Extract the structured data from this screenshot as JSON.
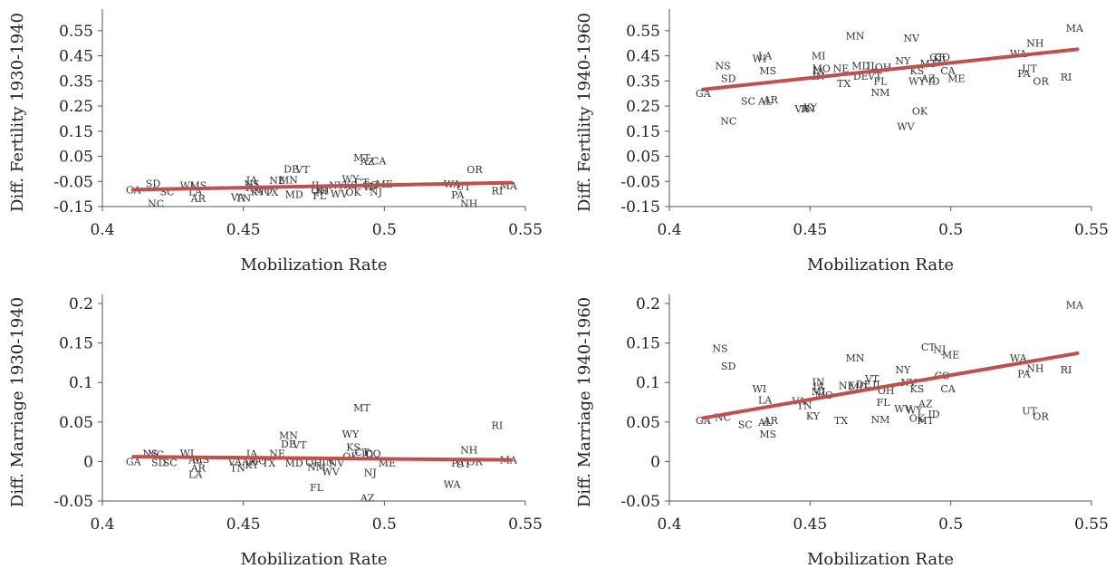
{
  "chart_data": [
    {
      "type": "scatter",
      "xlabel": "Mobilization Rate",
      "ylabel": "Diff. Fertility 1930-1940",
      "xlim": [
        0.4,
        0.55
      ],
      "ylim": [
        -0.15,
        0.6
      ],
      "xticks": [
        "0.4",
        "0.45",
        "0.5",
        "0.55"
      ],
      "yticks": [
        "-0.15",
        "-0.05",
        "0.05",
        "0.15",
        "0.25",
        "0.35",
        "0.45",
        "0.55"
      ],
      "ytick_values": [
        -0.15,
        -0.05,
        0.05,
        0.15,
        0.25,
        0.35,
        0.45,
        0.55
      ],
      "trend": [
        [
          0.411,
          -0.083
        ],
        [
          0.545,
          -0.055
        ]
      ],
      "points": [
        {
          "label": "GA",
          "x": 0.411,
          "y": -0.083
        },
        {
          "label": "SD",
          "x": 0.418,
          "y": -0.058
        },
        {
          "label": "NC",
          "x": 0.419,
          "y": -0.138
        },
        {
          "label": "SC",
          "x": 0.423,
          "y": -0.09
        },
        {
          "label": "WI",
          "x": 0.43,
          "y": -0.065
        },
        {
          "label": "MS",
          "x": 0.434,
          "y": -0.065
        },
        {
          "label": "LA",
          "x": 0.433,
          "y": -0.09
        },
        {
          "label": "AR",
          "x": 0.434,
          "y": -0.117
        },
        {
          "label": "VA",
          "x": 0.448,
          "y": -0.113
        },
        {
          "label": "TN",
          "x": 0.45,
          "y": -0.115
        },
        {
          "label": "IA",
          "x": 0.453,
          "y": -0.043
        },
        {
          "label": "NS",
          "x": 0.453,
          "y": -0.06
        },
        {
          "label": "IN",
          "x": 0.453,
          "y": -0.075
        },
        {
          "label": "KY",
          "x": 0.455,
          "y": -0.09
        },
        {
          "label": "MO",
          "x": 0.457,
          "y": -0.087
        },
        {
          "label": "TX",
          "x": 0.46,
          "y": -0.092
        },
        {
          "label": "NE",
          "x": 0.462,
          "y": -0.045
        },
        {
          "label": "MN",
          "x": 0.466,
          "y": -0.043
        },
        {
          "label": "MD",
          "x": 0.468,
          "y": -0.102
        },
        {
          "label": "DE",
          "x": 0.467,
          "y": 0.0
        },
        {
          "label": "VT",
          "x": 0.471,
          "y": -0.002
        },
        {
          "label": "IL",
          "x": 0.476,
          "y": -0.065
        },
        {
          "label": "OH",
          "x": 0.477,
          "y": -0.087
        },
        {
          "label": "MI",
          "x": 0.478,
          "y": -0.083
        },
        {
          "label": "FL",
          "x": 0.477,
          "y": -0.107
        },
        {
          "label": "NY",
          "x": 0.483,
          "y": -0.065
        },
        {
          "label": "WV",
          "x": 0.484,
          "y": -0.1
        },
        {
          "label": "KS",
          "x": 0.488,
          "y": -0.063
        },
        {
          "label": "OK",
          "x": 0.489,
          "y": -0.093
        },
        {
          "label": "WY",
          "x": 0.488,
          "y": -0.04
        },
        {
          "label": "CT",
          "x": 0.492,
          "y": -0.052
        },
        {
          "label": "CO",
          "x": 0.495,
          "y": -0.063
        },
        {
          "label": "ID",
          "x": 0.495,
          "y": -0.07
        },
        {
          "label": "NJ",
          "x": 0.497,
          "y": -0.09
        },
        {
          "label": "ME",
          "x": 0.5,
          "y": -0.06
        },
        {
          "label": "MT",
          "x": 0.492,
          "y": 0.045
        },
        {
          "label": "AZ",
          "x": 0.494,
          "y": 0.03
        },
        {
          "label": "CA",
          "x": 0.498,
          "y": 0.032
        },
        {
          "label": "OR",
          "x": 0.532,
          "y": -0.002
        },
        {
          "label": "WA",
          "x": 0.524,
          "y": -0.06
        },
        {
          "label": "UT",
          "x": 0.528,
          "y": -0.07
        },
        {
          "label": "PA",
          "x": 0.526,
          "y": -0.103
        },
        {
          "label": "NH",
          "x": 0.53,
          "y": -0.137
        },
        {
          "label": "RI",
          "x": 0.54,
          "y": -0.087
        },
        {
          "label": "MA",
          "x": 0.544,
          "y": -0.067
        }
      ]
    },
    {
      "type": "scatter",
      "xlabel": "Mobilization Rate",
      "ylabel": "Diff. Fertility 1940-1960",
      "xlim": [
        0.4,
        0.55
      ],
      "ylim": [
        -0.15,
        0.6
      ],
      "xticks": [
        "0.4",
        "0.45",
        "0.5",
        "0.55"
      ],
      "yticks": [
        "-0.15",
        "-0.05",
        "0.05",
        "0.15",
        "0.25",
        "0.35",
        "0.45",
        "0.55"
      ],
      "ytick_values": [
        -0.15,
        -0.05,
        0.05,
        0.15,
        0.25,
        0.35,
        0.45,
        0.55
      ],
      "trend": [
        [
          0.412,
          0.316
        ],
        [
          0.545,
          0.476
        ]
      ],
      "points": [
        {
          "label": "GA",
          "x": 0.412,
          "y": 0.3
        },
        {
          "label": "NS",
          "x": 0.419,
          "y": 0.41
        },
        {
          "label": "SD",
          "x": 0.421,
          "y": 0.36
        },
        {
          "label": "NC",
          "x": 0.421,
          "y": 0.19
        },
        {
          "label": "SC",
          "x": 0.428,
          "y": 0.27
        },
        {
          "label": "WI",
          "x": 0.432,
          "y": 0.44
        },
        {
          "label": "LA",
          "x": 0.434,
          "y": 0.45
        },
        {
          "label": "MS",
          "x": 0.435,
          "y": 0.39
        },
        {
          "label": "AL",
          "x": 0.434,
          "y": 0.27
        },
        {
          "label": "AR",
          "x": 0.436,
          "y": 0.275
        },
        {
          "label": "VA",
          "x": 0.447,
          "y": 0.24
        },
        {
          "label": "TN",
          "x": 0.449,
          "y": 0.24
        },
        {
          "label": "KY",
          "x": 0.45,
          "y": 0.245
        },
        {
          "label": "MI",
          "x": 0.453,
          "y": 0.45
        },
        {
          "label": "MO",
          "x": 0.454,
          "y": 0.4
        },
        {
          "label": "IA",
          "x": 0.453,
          "y": 0.39
        },
        {
          "label": "IN",
          "x": 0.453,
          "y": 0.37
        },
        {
          "label": "NE",
          "x": 0.461,
          "y": 0.4
        },
        {
          "label": "TX",
          "x": 0.462,
          "y": 0.34
        },
        {
          "label": "MN",
          "x": 0.466,
          "y": 0.53
        },
        {
          "label": "MD",
          "x": 0.468,
          "y": 0.41
        },
        {
          "label": "DE",
          "x": 0.468,
          "y": 0.37
        },
        {
          "label": "VT",
          "x": 0.473,
          "y": 0.37
        },
        {
          "label": "IL",
          "x": 0.472,
          "y": 0.41
        },
        {
          "label": "OH",
          "x": 0.476,
          "y": 0.405
        },
        {
          "label": "FL",
          "x": 0.475,
          "y": 0.35
        },
        {
          "label": "NM",
          "x": 0.475,
          "y": 0.305
        },
        {
          "label": "NY",
          "x": 0.483,
          "y": 0.43
        },
        {
          "label": "NV",
          "x": 0.486,
          "y": 0.52
        },
        {
          "label": "WV",
          "x": 0.484,
          "y": 0.17
        },
        {
          "label": "OK",
          "x": 0.489,
          "y": 0.23
        },
        {
          "label": "KS",
          "x": 0.488,
          "y": 0.39
        },
        {
          "label": "WY",
          "x": 0.488,
          "y": 0.35
        },
        {
          "label": "AZ",
          "x": 0.492,
          "y": 0.36
        },
        {
          "label": "ID",
          "x": 0.494,
          "y": 0.35
        },
        {
          "label": "MT",
          "x": 0.492,
          "y": 0.42
        },
        {
          "label": "CT",
          "x": 0.495,
          "y": 0.445
        },
        {
          "label": "NJ",
          "x": 0.496,
          "y": 0.435
        },
        {
          "label": "CO",
          "x": 0.497,
          "y": 0.445
        },
        {
          "label": "CA",
          "x": 0.499,
          "y": 0.39
        },
        {
          "label": "ME",
          "x": 0.502,
          "y": 0.36
        },
        {
          "label": "WA",
          "x": 0.524,
          "y": 0.46
        },
        {
          "label": "NH",
          "x": 0.53,
          "y": 0.5
        },
        {
          "label": "UT",
          "x": 0.528,
          "y": 0.4
        },
        {
          "label": "PA",
          "x": 0.526,
          "y": 0.38
        },
        {
          "label": "OR",
          "x": 0.532,
          "y": 0.35
        },
        {
          "label": "RI",
          "x": 0.541,
          "y": 0.365
        },
        {
          "label": "MA",
          "x": 0.544,
          "y": 0.56
        }
      ]
    },
    {
      "type": "scatter",
      "xlabel": "Mobilization Rate",
      "ylabel": "Diff. Marriage 1930-1940",
      "xlim": [
        0.4,
        0.55
      ],
      "ylim": [
        -0.05,
        0.2
      ],
      "xticks": [
        "0.4",
        "0.45",
        "0.5",
        "0.55"
      ],
      "yticks": [
        "-0.05",
        "0",
        "0.05",
        "0.1",
        "0.15",
        "0.2"
      ],
      "ytick_values": [
        -0.05,
        0,
        0.05,
        0.1,
        0.15,
        0.2
      ],
      "trend": [
        [
          0.411,
          0.006
        ],
        [
          0.545,
          0.002
        ]
      ],
      "points": [
        {
          "label": "GA",
          "x": 0.411,
          "y": 0.0
        },
        {
          "label": "NS",
          "x": 0.417,
          "y": 0.01
        },
        {
          "label": "NC",
          "x": 0.419,
          "y": 0.009
        },
        {
          "label": "SD",
          "x": 0.42,
          "y": -0.001
        },
        {
          "label": "SC",
          "x": 0.424,
          "y": -0.001
        },
        {
          "label": "WI",
          "x": 0.43,
          "y": 0.011
        },
        {
          "label": "AL",
          "x": 0.433,
          "y": 0.002
        },
        {
          "label": "MS",
          "x": 0.435,
          "y": 0.003
        },
        {
          "label": "AR",
          "x": 0.434,
          "y": -0.008
        },
        {
          "label": "LA",
          "x": 0.433,
          "y": -0.016
        },
        {
          "label": "VA",
          "x": 0.447,
          "y": 0.0
        },
        {
          "label": "TN",
          "x": 0.448,
          "y": -0.008
        },
        {
          "label": "IA",
          "x": 0.453,
          "y": 0.01
        },
        {
          "label": "AZ",
          "x": 0.452,
          "y": 0.0
        },
        {
          "label": "KY",
          "x": 0.453,
          "y": -0.004
        },
        {
          "label": "MO",
          "x": 0.455,
          "y": 0.001
        },
        {
          "label": "TX",
          "x": 0.459,
          "y": -0.002
        },
        {
          "label": "NE",
          "x": 0.462,
          "y": 0.01
        },
        {
          "label": "MN",
          "x": 0.466,
          "y": 0.033
        },
        {
          "label": "DE",
          "x": 0.466,
          "y": 0.022
        },
        {
          "label": "VT",
          "x": 0.47,
          "y": 0.021
        },
        {
          "label": "MD",
          "x": 0.468,
          "y": -0.002
        },
        {
          "label": "OH",
          "x": 0.475,
          "y": -0.001
        },
        {
          "label": "NM",
          "x": 0.476,
          "y": -0.007
        },
        {
          "label": "FL",
          "x": 0.476,
          "y": -0.033
        },
        {
          "label": "IN",
          "x": 0.48,
          "y": 0.0
        },
        {
          "label": "NV",
          "x": 0.483,
          "y": -0.002
        },
        {
          "label": "WV",
          "x": 0.481,
          "y": -0.013
        },
        {
          "label": "MT",
          "x": 0.492,
          "y": 0.068
        },
        {
          "label": "WY",
          "x": 0.488,
          "y": 0.035
        },
        {
          "label": "KS",
          "x": 0.489,
          "y": 0.018
        },
        {
          "label": "OK",
          "x": 0.488,
          "y": 0.007
        },
        {
          "label": "CT",
          "x": 0.492,
          "y": 0.012
        },
        {
          "label": "ID",
          "x": 0.494,
          "y": 0.009
        },
        {
          "label": "CO",
          "x": 0.496,
          "y": 0.01
        },
        {
          "label": "NJ",
          "x": 0.495,
          "y": -0.014
        },
        {
          "label": "ME",
          "x": 0.501,
          "y": -0.002
        },
        {
          "label": "AZ",
          "x": 0.494,
          "y": -0.046
        },
        {
          "label": "NH",
          "x": 0.53,
          "y": 0.015
        },
        {
          "label": "OR",
          "x": 0.532,
          "y": 0.0
        },
        {
          "label": "PA",
          "x": 0.526,
          "y": -0.002
        },
        {
          "label": "UT",
          "x": 0.528,
          "y": -0.003
        },
        {
          "label": "WA",
          "x": 0.524,
          "y": -0.029
        },
        {
          "label": "RI",
          "x": 0.54,
          "y": 0.046
        },
        {
          "label": "MA",
          "x": 0.544,
          "y": 0.002
        }
      ]
    },
    {
      "type": "scatter",
      "xlabel": "Mobilization Rate",
      "ylabel": "Diff. Marriage 1940-1960",
      "xlim": [
        0.4,
        0.55
      ],
      "ylim": [
        -0.05,
        0.2
      ],
      "xticks": [
        "0.4",
        "0.45",
        "0.5",
        "0.55"
      ],
      "yticks": [
        "-0.05",
        "0",
        "0.05",
        "0.1",
        "0.15",
        "0.2"
      ],
      "ytick_values": [
        -0.05,
        0,
        0.05,
        0.1,
        0.15,
        0.2
      ],
      "trend": [
        [
          0.412,
          0.055
        ],
        [
          0.545,
          0.137
        ]
      ],
      "points": [
        {
          "label": "GA",
          "x": 0.412,
          "y": 0.052
        },
        {
          "label": "NC",
          "x": 0.419,
          "y": 0.056
        },
        {
          "label": "NS",
          "x": 0.418,
          "y": 0.143
        },
        {
          "label": "SD",
          "x": 0.421,
          "y": 0.121
        },
        {
          "label": "SC",
          "x": 0.427,
          "y": 0.047
        },
        {
          "label": "WI",
          "x": 0.432,
          "y": 0.092
        },
        {
          "label": "LA",
          "x": 0.434,
          "y": 0.078
        },
        {
          "label": "AL",
          "x": 0.434,
          "y": 0.05
        },
        {
          "label": "AR",
          "x": 0.436,
          "y": 0.052
        },
        {
          "label": "MS",
          "x": 0.435,
          "y": 0.035
        },
        {
          "label": "VA",
          "x": 0.446,
          "y": 0.077
        },
        {
          "label": "TN",
          "x": 0.448,
          "y": 0.071
        },
        {
          "label": "KY",
          "x": 0.451,
          "y": 0.058
        },
        {
          "label": "IN",
          "x": 0.453,
          "y": 0.101
        },
        {
          "label": "IA",
          "x": 0.453,
          "y": 0.095
        },
        {
          "label": "MI",
          "x": 0.453,
          "y": 0.089
        },
        {
          "label": "MO",
          "x": 0.455,
          "y": 0.084
        },
        {
          "label": "TX",
          "x": 0.461,
          "y": 0.052
        },
        {
          "label": "NE",
          "x": 0.463,
          "y": 0.096
        },
        {
          "label": "MN",
          "x": 0.466,
          "y": 0.131
        },
        {
          "label": "MD",
          "x": 0.467,
          "y": 0.095
        },
        {
          "label": "DE",
          "x": 0.469,
          "y": 0.098
        },
        {
          "label": "VT",
          "x": 0.472,
          "y": 0.105
        },
        {
          "label": "IL",
          "x": 0.474,
          "y": 0.098
        },
        {
          "label": "OH",
          "x": 0.477,
          "y": 0.09
        },
        {
          "label": "FL",
          "x": 0.476,
          "y": 0.075
        },
        {
          "label": "NM",
          "x": 0.475,
          "y": 0.053
        },
        {
          "label": "NY",
          "x": 0.483,
          "y": 0.116
        },
        {
          "label": "NV",
          "x": 0.485,
          "y": 0.1
        },
        {
          "label": "KS",
          "x": 0.488,
          "y": 0.092
        },
        {
          "label": "WV",
          "x": 0.483,
          "y": 0.067
        },
        {
          "label": "WY",
          "x": 0.487,
          "y": 0.065
        },
        {
          "label": "AZ",
          "x": 0.491,
          "y": 0.073
        },
        {
          "label": "OK",
          "x": 0.488,
          "y": 0.055
        },
        {
          "label": "MT",
          "x": 0.491,
          "y": 0.052
        },
        {
          "label": "ID",
          "x": 0.494,
          "y": 0.06
        },
        {
          "label": "CT",
          "x": 0.492,
          "y": 0.145
        },
        {
          "label": "NJ",
          "x": 0.496,
          "y": 0.142
        },
        {
          "label": "ME",
          "x": 0.5,
          "y": 0.135
        },
        {
          "label": "CO",
          "x": 0.497,
          "y": 0.109
        },
        {
          "label": "CA",
          "x": 0.499,
          "y": 0.092
        },
        {
          "label": "WA",
          "x": 0.524,
          "y": 0.131
        },
        {
          "label": "NH",
          "x": 0.53,
          "y": 0.118
        },
        {
          "label": "PA",
          "x": 0.526,
          "y": 0.111
        },
        {
          "label": "UT",
          "x": 0.528,
          "y": 0.064
        },
        {
          "label": "OR",
          "x": 0.532,
          "y": 0.057
        },
        {
          "label": "RI",
          "x": 0.541,
          "y": 0.116
        },
        {
          "label": "MA",
          "x": 0.544,
          "y": 0.198
        }
      ]
    }
  ]
}
